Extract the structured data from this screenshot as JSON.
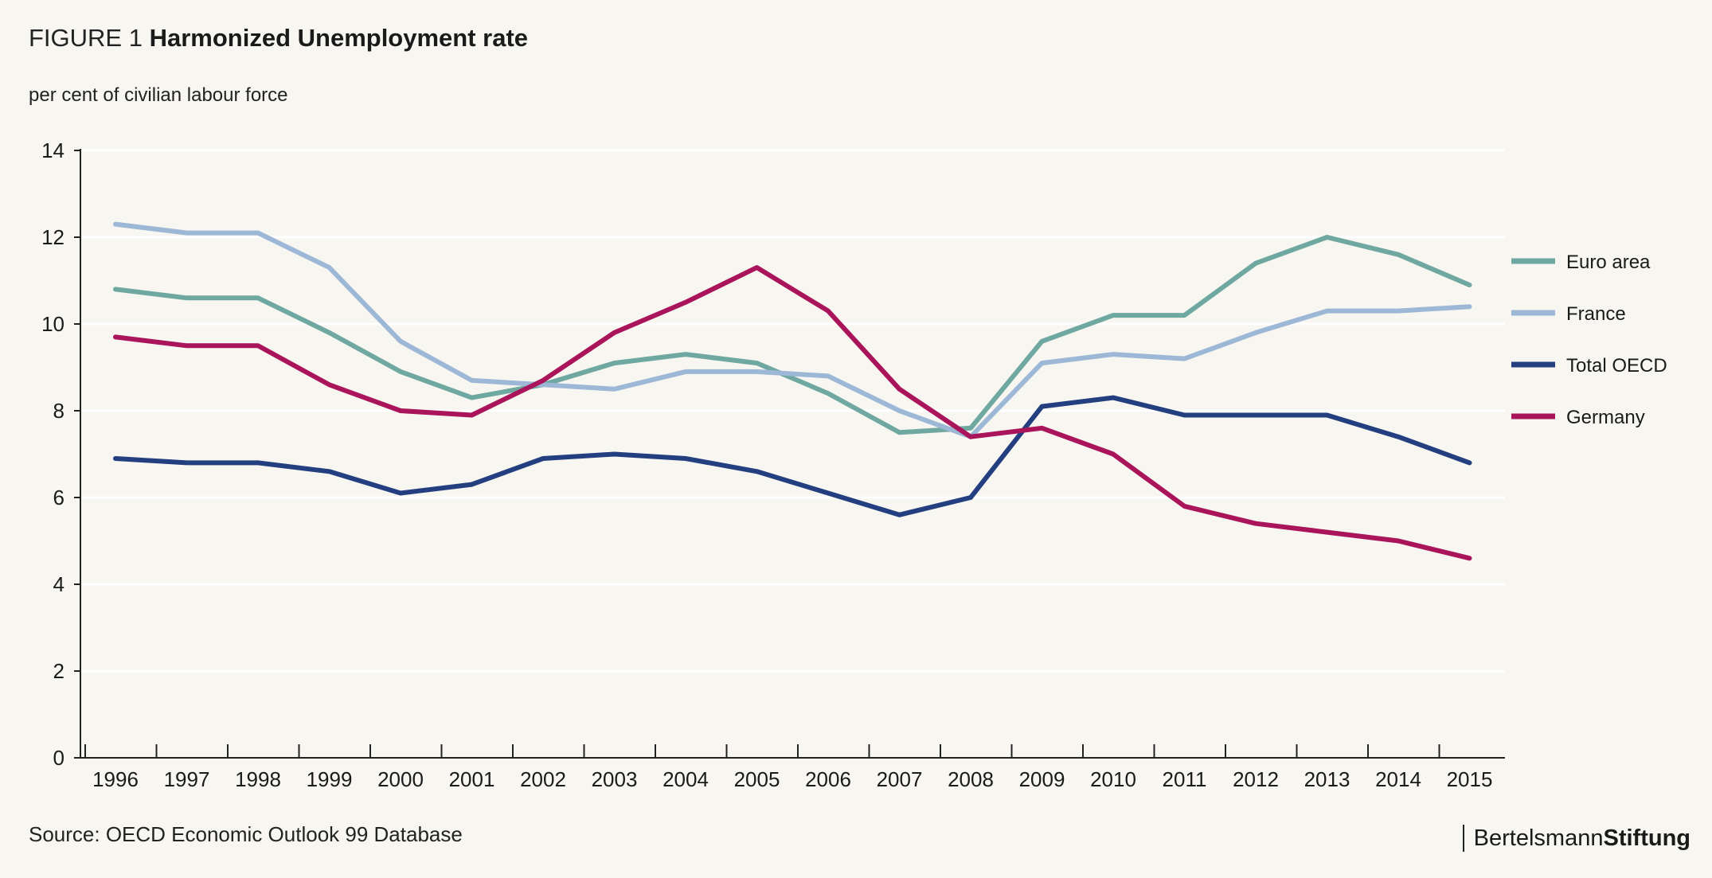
{
  "header": {
    "figure_label": "FIGURE 1",
    "title": "Harmonized Unemployment rate",
    "subtitle": "per cent of civilian labour force"
  },
  "footer": {
    "source": "Source: OECD Economic Outlook 99 Database",
    "brand_part1": "Bertelsmann",
    "brand_part2": "Stiftung"
  },
  "chart_data": {
    "type": "line",
    "title": "Harmonized Unemployment rate",
    "ylabel": "per cent of civilian labour force",
    "xlabel": "",
    "ylim": [
      0,
      14
    ],
    "yticks": [
      0,
      2,
      4,
      6,
      8,
      10,
      12,
      14
    ],
    "grid": "horizontal",
    "legend_position": "right",
    "x": [
      "1996",
      "1997",
      "1998",
      "1999",
      "2000",
      "2001",
      "2002",
      "2003",
      "2004",
      "2005",
      "2006",
      "2007",
      "2008",
      "2009",
      "2010",
      "2011",
      "2012",
      "2013",
      "2014",
      "2015"
    ],
    "series": [
      {
        "name": "Euro area",
        "color": "#6fa8a0",
        "values": [
          10.8,
          10.6,
          10.6,
          9.8,
          8.9,
          8.3,
          8.6,
          9.1,
          9.3,
          9.1,
          8.4,
          7.5,
          7.6,
          9.6,
          10.2,
          10.2,
          11.4,
          12.0,
          11.6,
          10.9
        ]
      },
      {
        "name": "France",
        "color": "#9db7d6",
        "values": [
          12.3,
          12.1,
          12.1,
          11.3,
          9.6,
          8.7,
          8.6,
          8.5,
          8.9,
          8.9,
          8.8,
          8.0,
          7.4,
          9.1,
          9.3,
          9.2,
          9.8,
          10.3,
          10.3,
          10.4
        ]
      },
      {
        "name": "Total OECD",
        "color": "#233f80",
        "values": [
          6.9,
          6.8,
          6.8,
          6.6,
          6.1,
          6.3,
          6.9,
          7.0,
          6.9,
          6.6,
          6.1,
          5.6,
          6.0,
          8.1,
          8.3,
          7.9,
          7.9,
          7.9,
          7.4,
          6.8
        ]
      },
      {
        "name": "Germany",
        "color": "#a9145a",
        "values": [
          9.7,
          9.5,
          9.5,
          8.6,
          8.0,
          7.9,
          8.7,
          9.8,
          10.5,
          11.3,
          10.3,
          8.5,
          7.4,
          7.6,
          7.0,
          5.8,
          5.4,
          5.2,
          5.0,
          4.6
        ]
      }
    ]
  }
}
